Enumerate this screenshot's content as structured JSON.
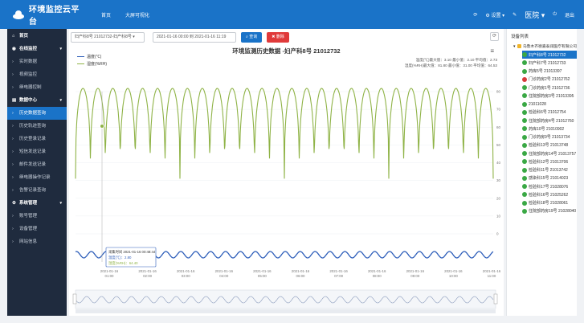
{
  "header": {
    "title": "环境监控云平台",
    "nav": [
      "首页",
      "大屏可视化"
    ],
    "right": {
      "expand": "设置",
      "user": "医院",
      "logout": "退出"
    }
  },
  "sidebar": {
    "home": "首页",
    "groups": [
      {
        "label": "在线监控",
        "items": [
          "实时数据",
          "视频监控",
          "继电器控制"
        ]
      },
      {
        "label": "数据中心",
        "items": [
          "历史数据查询",
          "历史轨迹查询",
          "历史登录记录",
          "短信发送记录",
          "邮件发送记录",
          "继电器操作记录",
          "告警记录查询"
        ]
      },
      {
        "label": "系统管理",
        "items": [
          "账号管理",
          "设备管理",
          "网站信息"
        ]
      }
    ]
  },
  "toolbar": {
    "device_select": "妇产科8号 21012732-妇产科8号",
    "date_range": "2021-01-16 00:00 到 2021-01-16 11:19",
    "query_label": "查询",
    "delete_label": "删除"
  },
  "chart": {
    "title": "环境监测历史数据 -妇产科8号 21012732",
    "legend": [
      "温度(℃)",
      "湿度(%RH)"
    ],
    "stats": [
      "温度(℃)最大值：3.10 最小值：2.10 平均值：2.73",
      "湿度(%RH)最大值：81.80 最小值：31.00 平均值：64.53"
    ],
    "tooltip": {
      "time": "采集时间 2021-01-16 00:48:44",
      "temp": "温度(℃)：2.80",
      "humid": "湿度(%RH)：64.40"
    },
    "colors": {
      "temperature": "#2f5fba",
      "humidity": "#8fb347"
    }
  },
  "chart_data": {
    "type": "line",
    "title": "环境监测历史数据 -妇产科8号 21012732",
    "x_ticks": [
      "2021-01-16 01:00",
      "2021-01-16 02:00",
      "2021-01-16 03:00",
      "2021-01-16 04:00",
      "2021-01-16 05:00",
      "2021-01-16 06:00",
      "2021-01-16 07:00",
      "2021-01-16 08:00",
      "2021-01-16 09:00",
      "2021-01-16 10:00",
      "2021-01-16 11:00"
    ],
    "y_ticks": [
      80,
      70,
      60,
      50,
      40,
      30,
      20,
      10,
      0
    ],
    "ylim": [
      0,
      80
    ],
    "series": [
      {
        "name": "温度(℃)",
        "cycles": 28,
        "min": 2.1,
        "max": 3.1,
        "avg": 2.73
      },
      {
        "name": "湿度(%RH)",
        "cycles": 28,
        "min": 31.0,
        "max": 81.8,
        "avg": 64.53
      }
    ],
    "legend_position": "top-left",
    "grid": true
  },
  "device_panel": {
    "title": "设备列表",
    "root": "乌鲁木齐德嘉泰润医疗有限公司",
    "devices": [
      {
        "label": "妇产科8号 21012732",
        "color": "#3aa845",
        "selected": true
      },
      {
        "label": "妇产科7号 21012733",
        "color": "#3aa845"
      },
      {
        "label": "药库5号 21013397",
        "color": "#3aa845"
      },
      {
        "label": "门诊药房2号 21012762",
        "color": "#d63b3b"
      },
      {
        "label": "门诊药房1号 21012736",
        "color": "#3aa845"
      },
      {
        "label": "住院部药房3号 21013395",
        "color": "#3aa845"
      },
      {
        "label": "21011028",
        "color": "#3aa845"
      },
      {
        "label": "检验科6号 21012754",
        "color": "#3aa845"
      },
      {
        "label": "住院部药房4号 21012760",
        "color": "#3aa845"
      },
      {
        "label": "药库10号 21010902",
        "color": "#3aa845"
      },
      {
        "label": "门诊药房9号 21013734",
        "color": "#3aa845"
      },
      {
        "label": "检验科13号 21013748",
        "color": "#3aa845"
      },
      {
        "label": "住院部药房14号 21013757",
        "color": "#3aa845"
      },
      {
        "label": "检验科12号 21013706",
        "color": "#3aa845"
      },
      {
        "label": "检验科11号 21013742",
        "color": "#3aa845"
      },
      {
        "label": "感染科15号 21014023",
        "color": "#3aa845"
      },
      {
        "label": "检验科17号 21028076",
        "color": "#3aa845"
      },
      {
        "label": "检验科16号 21025262",
        "color": "#3aa845"
      },
      {
        "label": "检验科18号 21028061",
        "color": "#3aa845"
      },
      {
        "label": "住院部药房19号 21028040",
        "color": "#3aa845"
      }
    ]
  }
}
